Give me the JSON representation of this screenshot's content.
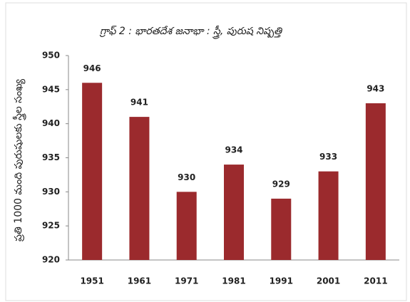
{
  "chart_data": {
    "type": "bar",
    "title": "గ్రాఫ్ 2 : భారతదేశ   జనాభా : స్త్రీ, పురుష నిష్పత్తి",
    "y_label": "ప్రతి 1000 మంది పురుషులకు స్త్రీల సంఖ్య",
    "categories": [
      "1951",
      "1961",
      "1971",
      "1981",
      "1991",
      "2001",
      "2011"
    ],
    "values": [
      946,
      941,
      930,
      934,
      929,
      933,
      943
    ],
    "color": "#9b2a2d",
    "ylim": [
      920,
      950
    ],
    "yticks": [
      920,
      925,
      930,
      935,
      940,
      945,
      950
    ],
    "grid": false
  }
}
